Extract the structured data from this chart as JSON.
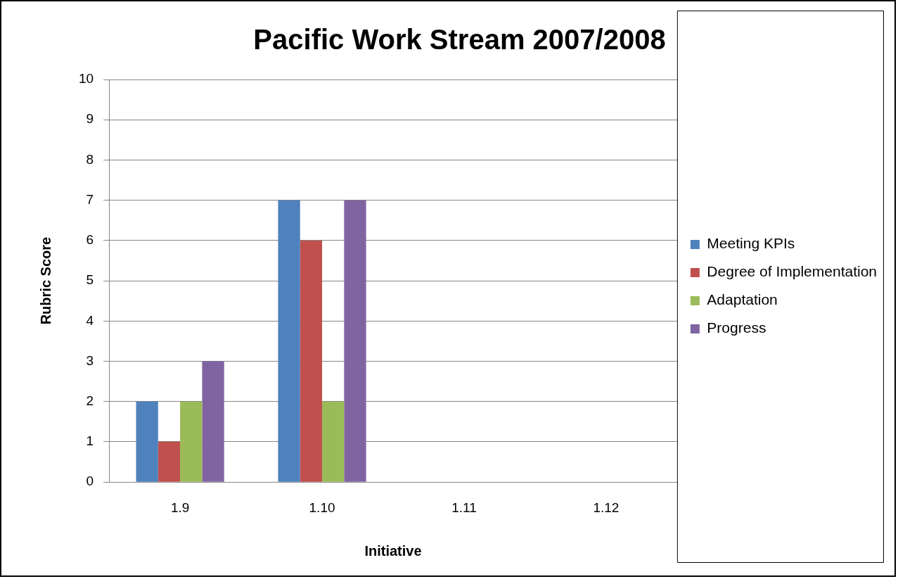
{
  "chart_data": {
    "type": "bar",
    "title": "Pacific Work Stream 2007/2008",
    "xlabel": "Initiative",
    "ylabel": "Rubric Score",
    "categories": [
      "1.9",
      "1.10",
      "1.11",
      "1.12"
    ],
    "series": [
      {
        "name": "Meeting KPIs",
        "color": "#4f81bd",
        "values": [
          2,
          7,
          null,
          null
        ]
      },
      {
        "name": "Degree of Implementation",
        "color": "#c0504d",
        "values": [
          1,
          6,
          null,
          null
        ]
      },
      {
        "name": "Adaptation",
        "color": "#9bbb59",
        "values": [
          2,
          2,
          null,
          null
        ]
      },
      {
        "name": "Progress",
        "color": "#8064a2",
        "values": [
          3,
          7,
          null,
          null
        ]
      }
    ],
    "ylim": [
      0,
      10
    ],
    "yticks": [
      0,
      1,
      2,
      3,
      4,
      5,
      6,
      7,
      8,
      9,
      10
    ],
    "grid": "y",
    "legend": "right"
  }
}
